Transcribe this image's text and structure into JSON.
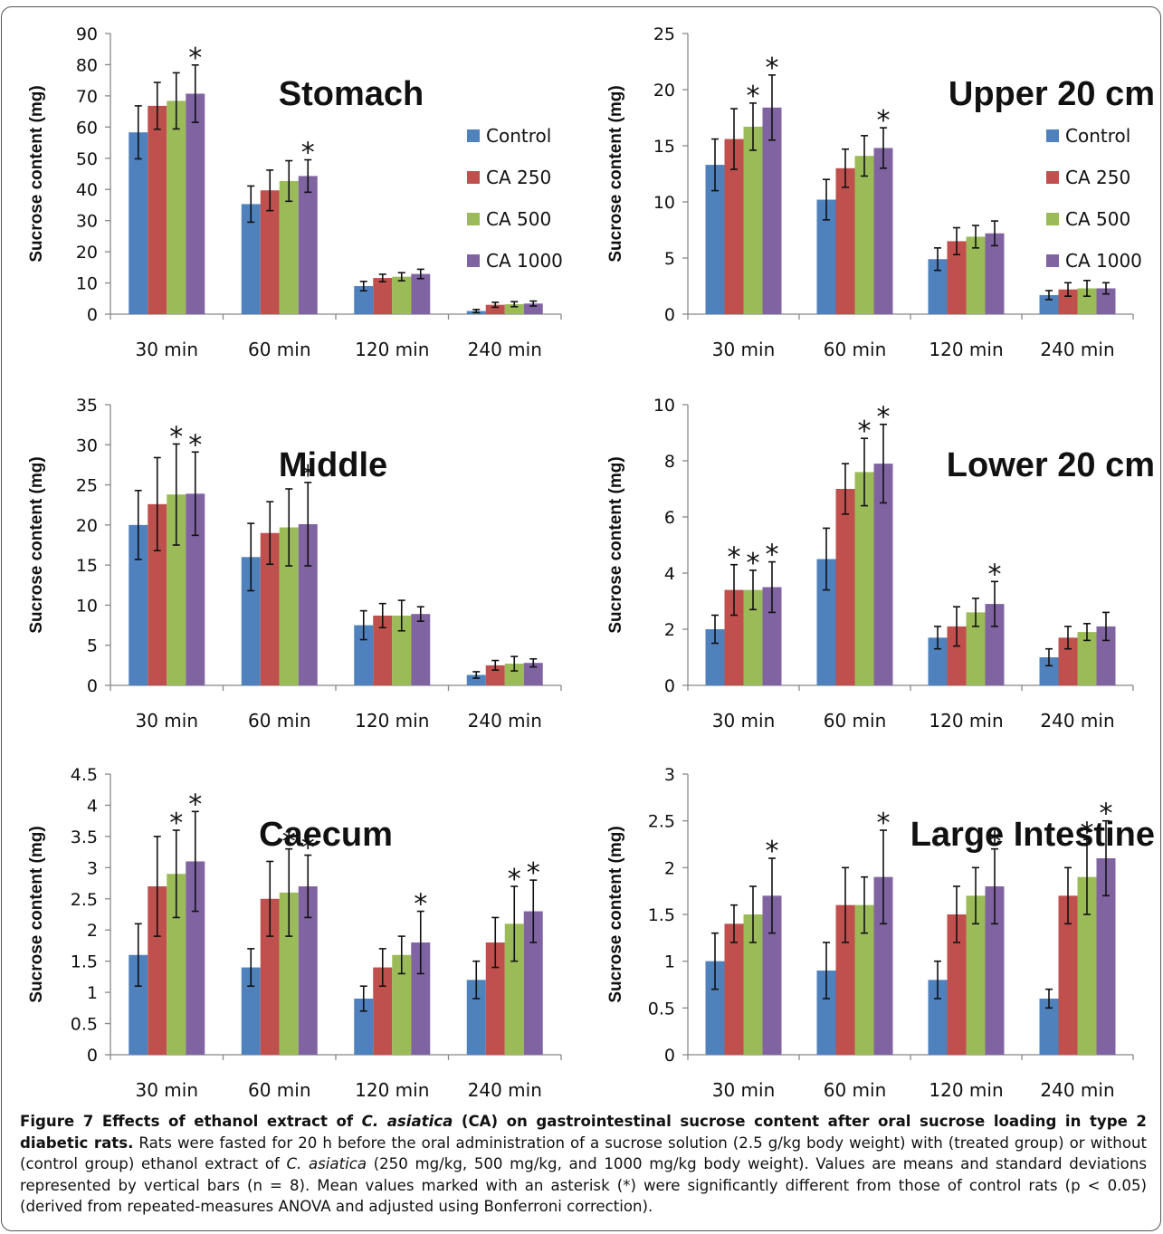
{
  "colors": {
    "Control": "#4F81BD",
    "CA 250": "#C0504D",
    "CA 500": "#9BBB59",
    "CA 1000": "#8064A2"
  },
  "chart_data": [
    {
      "type": "bar",
      "title": "Stomach",
      "ylabel": "Sucrose content (mg)",
      "xlabel": "",
      "categories": [
        "30 min",
        "60 min",
        "120 min",
        "240 min"
      ],
      "ylim": [
        0,
        90
      ],
      "yticks": [
        "0",
        "10",
        "20",
        "30",
        "40",
        "50",
        "60",
        "70",
        "80",
        "90"
      ],
      "legend_position": "right",
      "series": [
        {
          "name": "Control",
          "values": [
            58.3,
            35.3,
            9.0,
            1.0
          ],
          "errors": [
            8.5,
            5.8,
            1.5,
            0.5
          ],
          "significant": [
            false,
            false,
            false,
            false
          ]
        },
        {
          "name": "CA 250",
          "values": [
            66.8,
            39.7,
            11.6,
            3.0
          ],
          "errors": [
            7.5,
            6.5,
            1.2,
            0.8
          ],
          "significant": [
            false,
            false,
            false,
            false
          ]
        },
        {
          "name": "CA 500",
          "values": [
            68.4,
            42.7,
            12.0,
            3.2
          ],
          "errors": [
            9.0,
            6.5,
            1.3,
            0.8
          ],
          "significant": [
            false,
            false,
            false,
            false
          ]
        },
        {
          "name": "CA 1000",
          "values": [
            70.7,
            44.3,
            12.9,
            3.4
          ],
          "errors": [
            9.2,
            5.2,
            1.5,
            0.8
          ],
          "significant": [
            true,
            true,
            false,
            false
          ]
        }
      ]
    },
    {
      "type": "bar",
      "title": "Upper 20 cm",
      "ylabel": "Sucrose content (mg)",
      "xlabel": "",
      "categories": [
        "30 min",
        "60 min",
        "120 min",
        "240 min"
      ],
      "ylim": [
        0,
        25
      ],
      "yticks": [
        "0",
        "5",
        "10",
        "15",
        "20",
        "25"
      ],
      "legend_position": "right",
      "series": [
        {
          "name": "Control",
          "values": [
            13.3,
            10.2,
            4.9,
            1.7
          ],
          "errors": [
            2.3,
            1.8,
            1.0,
            0.4
          ],
          "significant": [
            false,
            false,
            false,
            false
          ]
        },
        {
          "name": "CA 250",
          "values": [
            15.6,
            13.0,
            6.5,
            2.2
          ],
          "errors": [
            2.7,
            1.7,
            1.2,
            0.6
          ],
          "significant": [
            false,
            false,
            false,
            false
          ]
        },
        {
          "name": "CA 500",
          "values": [
            16.7,
            14.1,
            6.9,
            2.3
          ],
          "errors": [
            2.1,
            1.8,
            1.0,
            0.7
          ],
          "significant": [
            true,
            false,
            false,
            false
          ]
        },
        {
          "name": "CA 1000",
          "values": [
            18.4,
            14.8,
            7.2,
            2.3
          ],
          "errors": [
            2.9,
            1.8,
            1.1,
            0.5
          ],
          "significant": [
            true,
            true,
            false,
            false
          ]
        }
      ]
    },
    {
      "type": "bar",
      "title": "Middle",
      "ylabel": "Sucrose content (mg)",
      "xlabel": "",
      "categories": [
        "30 min",
        "60 min",
        "120 min",
        "240 min"
      ],
      "ylim": [
        0,
        35
      ],
      "yticks": [
        "0",
        "5",
        "10",
        "15",
        "20",
        "25",
        "30",
        "35"
      ],
      "legend_position": "none",
      "series": [
        {
          "name": "Control",
          "values": [
            20.0,
            16.0,
            7.5,
            1.3
          ],
          "errors": [
            4.3,
            4.2,
            1.8,
            0.4
          ],
          "significant": [
            false,
            false,
            false,
            false
          ]
        },
        {
          "name": "CA 250",
          "values": [
            22.6,
            19.0,
            8.7,
            2.5
          ],
          "errors": [
            5.8,
            3.9,
            1.5,
            0.6
          ],
          "significant": [
            false,
            false,
            false,
            false
          ]
        },
        {
          "name": "CA 500",
          "values": [
            23.8,
            19.7,
            8.7,
            2.7
          ],
          "errors": [
            6.3,
            4.8,
            1.9,
            0.9
          ],
          "significant": [
            true,
            false,
            false,
            false
          ]
        },
        {
          "name": "CA 1000",
          "values": [
            23.9,
            20.1,
            8.9,
            2.8
          ],
          "errors": [
            5.2,
            5.2,
            0.9,
            0.5
          ],
          "significant": [
            true,
            true,
            false,
            false
          ]
        }
      ]
    },
    {
      "type": "bar",
      "title": "Lower 20 cm",
      "ylabel": "Sucrose content (mg)",
      "xlabel": "",
      "categories": [
        "30 min",
        "60 min",
        "120 min",
        "240 min"
      ],
      "ylim": [
        0,
        10
      ],
      "yticks": [
        "0",
        "2",
        "4",
        "6",
        "8",
        "10"
      ],
      "legend_position": "none",
      "series": [
        {
          "name": "Control",
          "values": [
            2.0,
            4.5,
            1.7,
            1.0
          ],
          "errors": [
            0.5,
            1.1,
            0.4,
            0.3
          ],
          "significant": [
            false,
            false,
            false,
            false
          ]
        },
        {
          "name": "CA 250",
          "values": [
            3.4,
            7.0,
            2.1,
            1.7
          ],
          "errors": [
            0.9,
            0.9,
            0.7,
            0.4
          ],
          "significant": [
            true,
            false,
            false,
            false
          ]
        },
        {
          "name": "CA 500",
          "values": [
            3.4,
            7.6,
            2.6,
            1.9
          ],
          "errors": [
            0.7,
            1.2,
            0.5,
            0.3
          ],
          "significant": [
            true,
            true,
            false,
            false
          ]
        },
        {
          "name": "CA 1000",
          "values": [
            3.5,
            7.9,
            2.9,
            2.1
          ],
          "errors": [
            0.9,
            1.4,
            0.8,
            0.5
          ],
          "significant": [
            true,
            true,
            true,
            false
          ]
        }
      ]
    },
    {
      "type": "bar",
      "title": "Caecum",
      "ylabel": "Sucrose content (mg)",
      "xlabel": "",
      "categories": [
        "30 min",
        "60 min",
        "120 min",
        "240 min"
      ],
      "ylim": [
        0,
        4.5
      ],
      "yticks": [
        "0",
        "0.5",
        "1",
        "1.5",
        "2",
        "2.5",
        "3",
        "3.5",
        "4",
        "4.5"
      ],
      "legend_position": "none",
      "series": [
        {
          "name": "Control",
          "values": [
            1.6,
            1.4,
            0.9,
            1.2
          ],
          "errors": [
            0.5,
            0.3,
            0.2,
            0.3
          ],
          "significant": [
            false,
            false,
            false,
            false
          ]
        },
        {
          "name": "CA 250",
          "values": [
            2.7,
            2.5,
            1.4,
            1.8
          ],
          "errors": [
            0.8,
            0.6,
            0.3,
            0.4
          ],
          "significant": [
            false,
            false,
            false,
            false
          ]
        },
        {
          "name": "CA 500",
          "values": [
            2.9,
            2.6,
            1.6,
            2.1
          ],
          "errors": [
            0.7,
            0.7,
            0.3,
            0.6
          ],
          "significant": [
            true,
            true,
            false,
            true
          ]
        },
        {
          "name": "CA 1000",
          "values": [
            3.1,
            2.7,
            1.8,
            2.3
          ],
          "errors": [
            0.8,
            0.5,
            0.5,
            0.5
          ],
          "significant": [
            true,
            true,
            true,
            true
          ]
        }
      ]
    },
    {
      "type": "bar",
      "title": "Large Intestine",
      "ylabel": "Sucrose content (mg)",
      "xlabel": "",
      "categories": [
        "30 min",
        "60 min",
        "120 min",
        "240 min"
      ],
      "ylim": [
        0,
        3
      ],
      "yticks": [
        "0",
        "0.5",
        "1",
        "1.5",
        "2",
        "2.5",
        "3"
      ],
      "legend_position": "none",
      "series": [
        {
          "name": "Control",
          "values": [
            1.0,
            0.9,
            0.8,
            0.6
          ],
          "errors": [
            0.3,
            0.3,
            0.2,
            0.1
          ],
          "significant": [
            false,
            false,
            false,
            false
          ]
        },
        {
          "name": "CA 250",
          "values": [
            1.4,
            1.6,
            1.5,
            1.7
          ],
          "errors": [
            0.2,
            0.4,
            0.3,
            0.3
          ],
          "significant": [
            false,
            false,
            false,
            false
          ]
        },
        {
          "name": "CA 500",
          "values": [
            1.5,
            1.6,
            1.7,
            1.9
          ],
          "errors": [
            0.3,
            0.3,
            0.3,
            0.4
          ],
          "significant": [
            false,
            false,
            false,
            true
          ]
        },
        {
          "name": "CA 1000",
          "values": [
            1.7,
            1.9,
            1.8,
            2.1
          ],
          "errors": [
            0.4,
            0.5,
            0.4,
            0.4
          ],
          "significant": [
            true,
            true,
            true,
            true
          ]
        }
      ]
    }
  ],
  "caption": {
    "lead_a": "Figure 7 Effects of ethanol extract of ",
    "lead_species": "C. asiatica",
    "lead_b": " (CA) on gastrointestinal sucrose content after oral sucrose loading in type 2 diabetic rats.",
    "body_a": " Rats were fasted for 20 h before the oral administration of a sucrose solution (2.5 g/kg body weight) with (treated group) or without (control group) ethanol extract of ",
    "body_species": "C. asiatica",
    "body_b": " (250 mg/kg, 500 mg/kg, and 1000 mg/kg body weight). Values are means and standard deviations represented by vertical bars (n = 8). Mean values marked with an asterisk (*) were significantly different from those of control rats (p < 0.05) (derived from repeated-measures ANOVA and adjusted using Bonferroni correction)."
  }
}
